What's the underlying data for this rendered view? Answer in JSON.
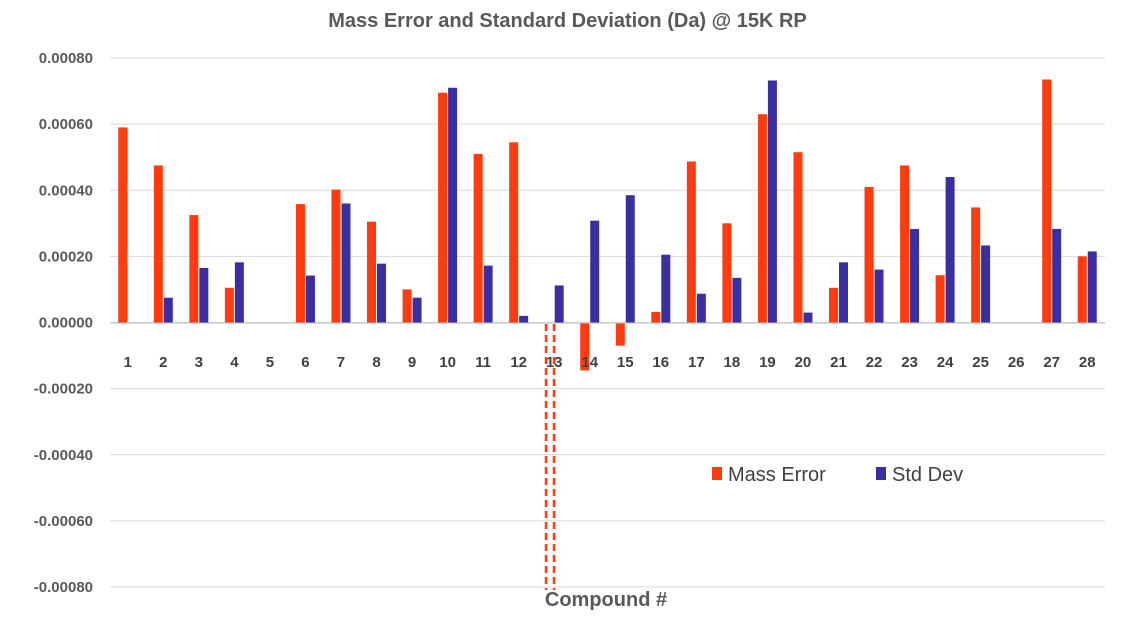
{
  "chart_data": {
    "type": "bar",
    "title": "Mass Error and Standard Deviation (Da) @ 15K RP",
    "xlabel": "Compound #",
    "ylabel": "",
    "ylim": [
      -0.0008,
      0.0008
    ],
    "yticks": [
      "0.00080",
      "0.00060",
      "0.00040",
      "0.00020",
      "0.00000",
      "-0.00020",
      "-0.00040",
      "-0.00060",
      "-0.00080"
    ],
    "categories": [
      "1",
      "2",
      "3",
      "4",
      "5",
      "6",
      "7",
      "8",
      "9",
      "10",
      "11",
      "12",
      "13",
      "14",
      "15",
      "16",
      "17",
      "18",
      "19",
      "20",
      "21",
      "22",
      "23",
      "24",
      "25",
      "26",
      "27",
      "28"
    ],
    "series": [
      {
        "name": "Mass Error",
        "color": "#ff3b0f",
        "values": [
          0.00059,
          0.000475,
          0.000325,
          0.000105,
          0,
          0.000358,
          0.000402,
          0.000305,
          0.0001,
          0.000695,
          0.00051,
          0.000545,
          0,
          -0.000145,
          -7e-05,
          3.2e-05,
          0.000487,
          0.0003,
          0.00063,
          0.000515,
          0.000105,
          0.00041,
          0.000475,
          0.000143,
          0.000348,
          0,
          0.000735,
          0.0002
        ]
      },
      {
        "name": "Std Dev",
        "color": "#3a2fa0",
        "values": [
          0,
          7.5e-05,
          0.000165,
          0.000182,
          0,
          0.000142,
          0.00036,
          0.000178,
          7.5e-05,
          0.00071,
          0.000172,
          2e-05,
          0.000112,
          0.000308,
          0.000385,
          0.000205,
          8.7e-05,
          0.000135,
          0.000732,
          3e-05,
          0.000182,
          0.00016,
          0.000283,
          0.00044,
          0.000233,
          0,
          0.000283,
          0.000215
        ]
      }
    ],
    "grid": true,
    "legend_position": "lower-right"
  }
}
